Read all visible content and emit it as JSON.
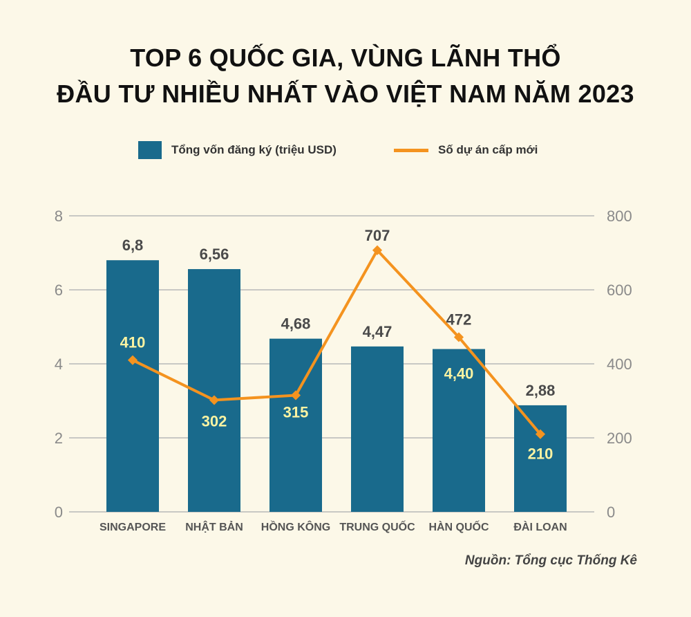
{
  "title_lines": [
    "TOP 6 QUỐC GIA, VÙNG LÃNH THỔ",
    "ĐẦU TƯ NHIỀU NHẤT VÀO VIỆT NAM NĂM 2023"
  ],
  "source": "Nguồn: Tổng cục Thống Kê",
  "colors": {
    "bar": "#196a8c",
    "line": "#f4931f",
    "grid": "#b7b7b7",
    "tick": "#8a8a8a",
    "bar_label": "#4a4a4a",
    "line_label": "#fbf3a2",
    "background": "#fcf8e8"
  },
  "chart_data": {
    "type": "bar",
    "categories": [
      "SINGAPORE",
      "NHẬT BẢN",
      "HỒNG KÔNG",
      "TRUNG QUỐC",
      "HÀN QUỐC",
      "ĐÀI LOAN"
    ],
    "series": [
      {
        "name": "Tổng vốn đăng ký (triệu USD)",
        "type": "bar",
        "axis": "left",
        "values": [
          6.8,
          6.56,
          4.68,
          4.47,
          4.4,
          2.88
        ],
        "labels": [
          "6,8",
          "6,56",
          "4,68",
          "4,47",
          "4,40",
          "2,88"
        ]
      },
      {
        "name": "Số dự án cấp mới",
        "type": "line",
        "axis": "right",
        "values": [
          410,
          302,
          315,
          707,
          472,
          210
        ],
        "labels": [
          "410",
          "302",
          "315",
          "707",
          "472",
          "210"
        ]
      }
    ],
    "y_left": {
      "lim": [
        0,
        8
      ],
      "ticks": [
        "0",
        "2",
        "4",
        "6",
        "8"
      ]
    },
    "y_right": {
      "lim": [
        0,
        800
      ],
      "ticks": [
        "0",
        "200",
        "400",
        "600",
        "800"
      ]
    },
    "grid": true,
    "legend": "top"
  }
}
